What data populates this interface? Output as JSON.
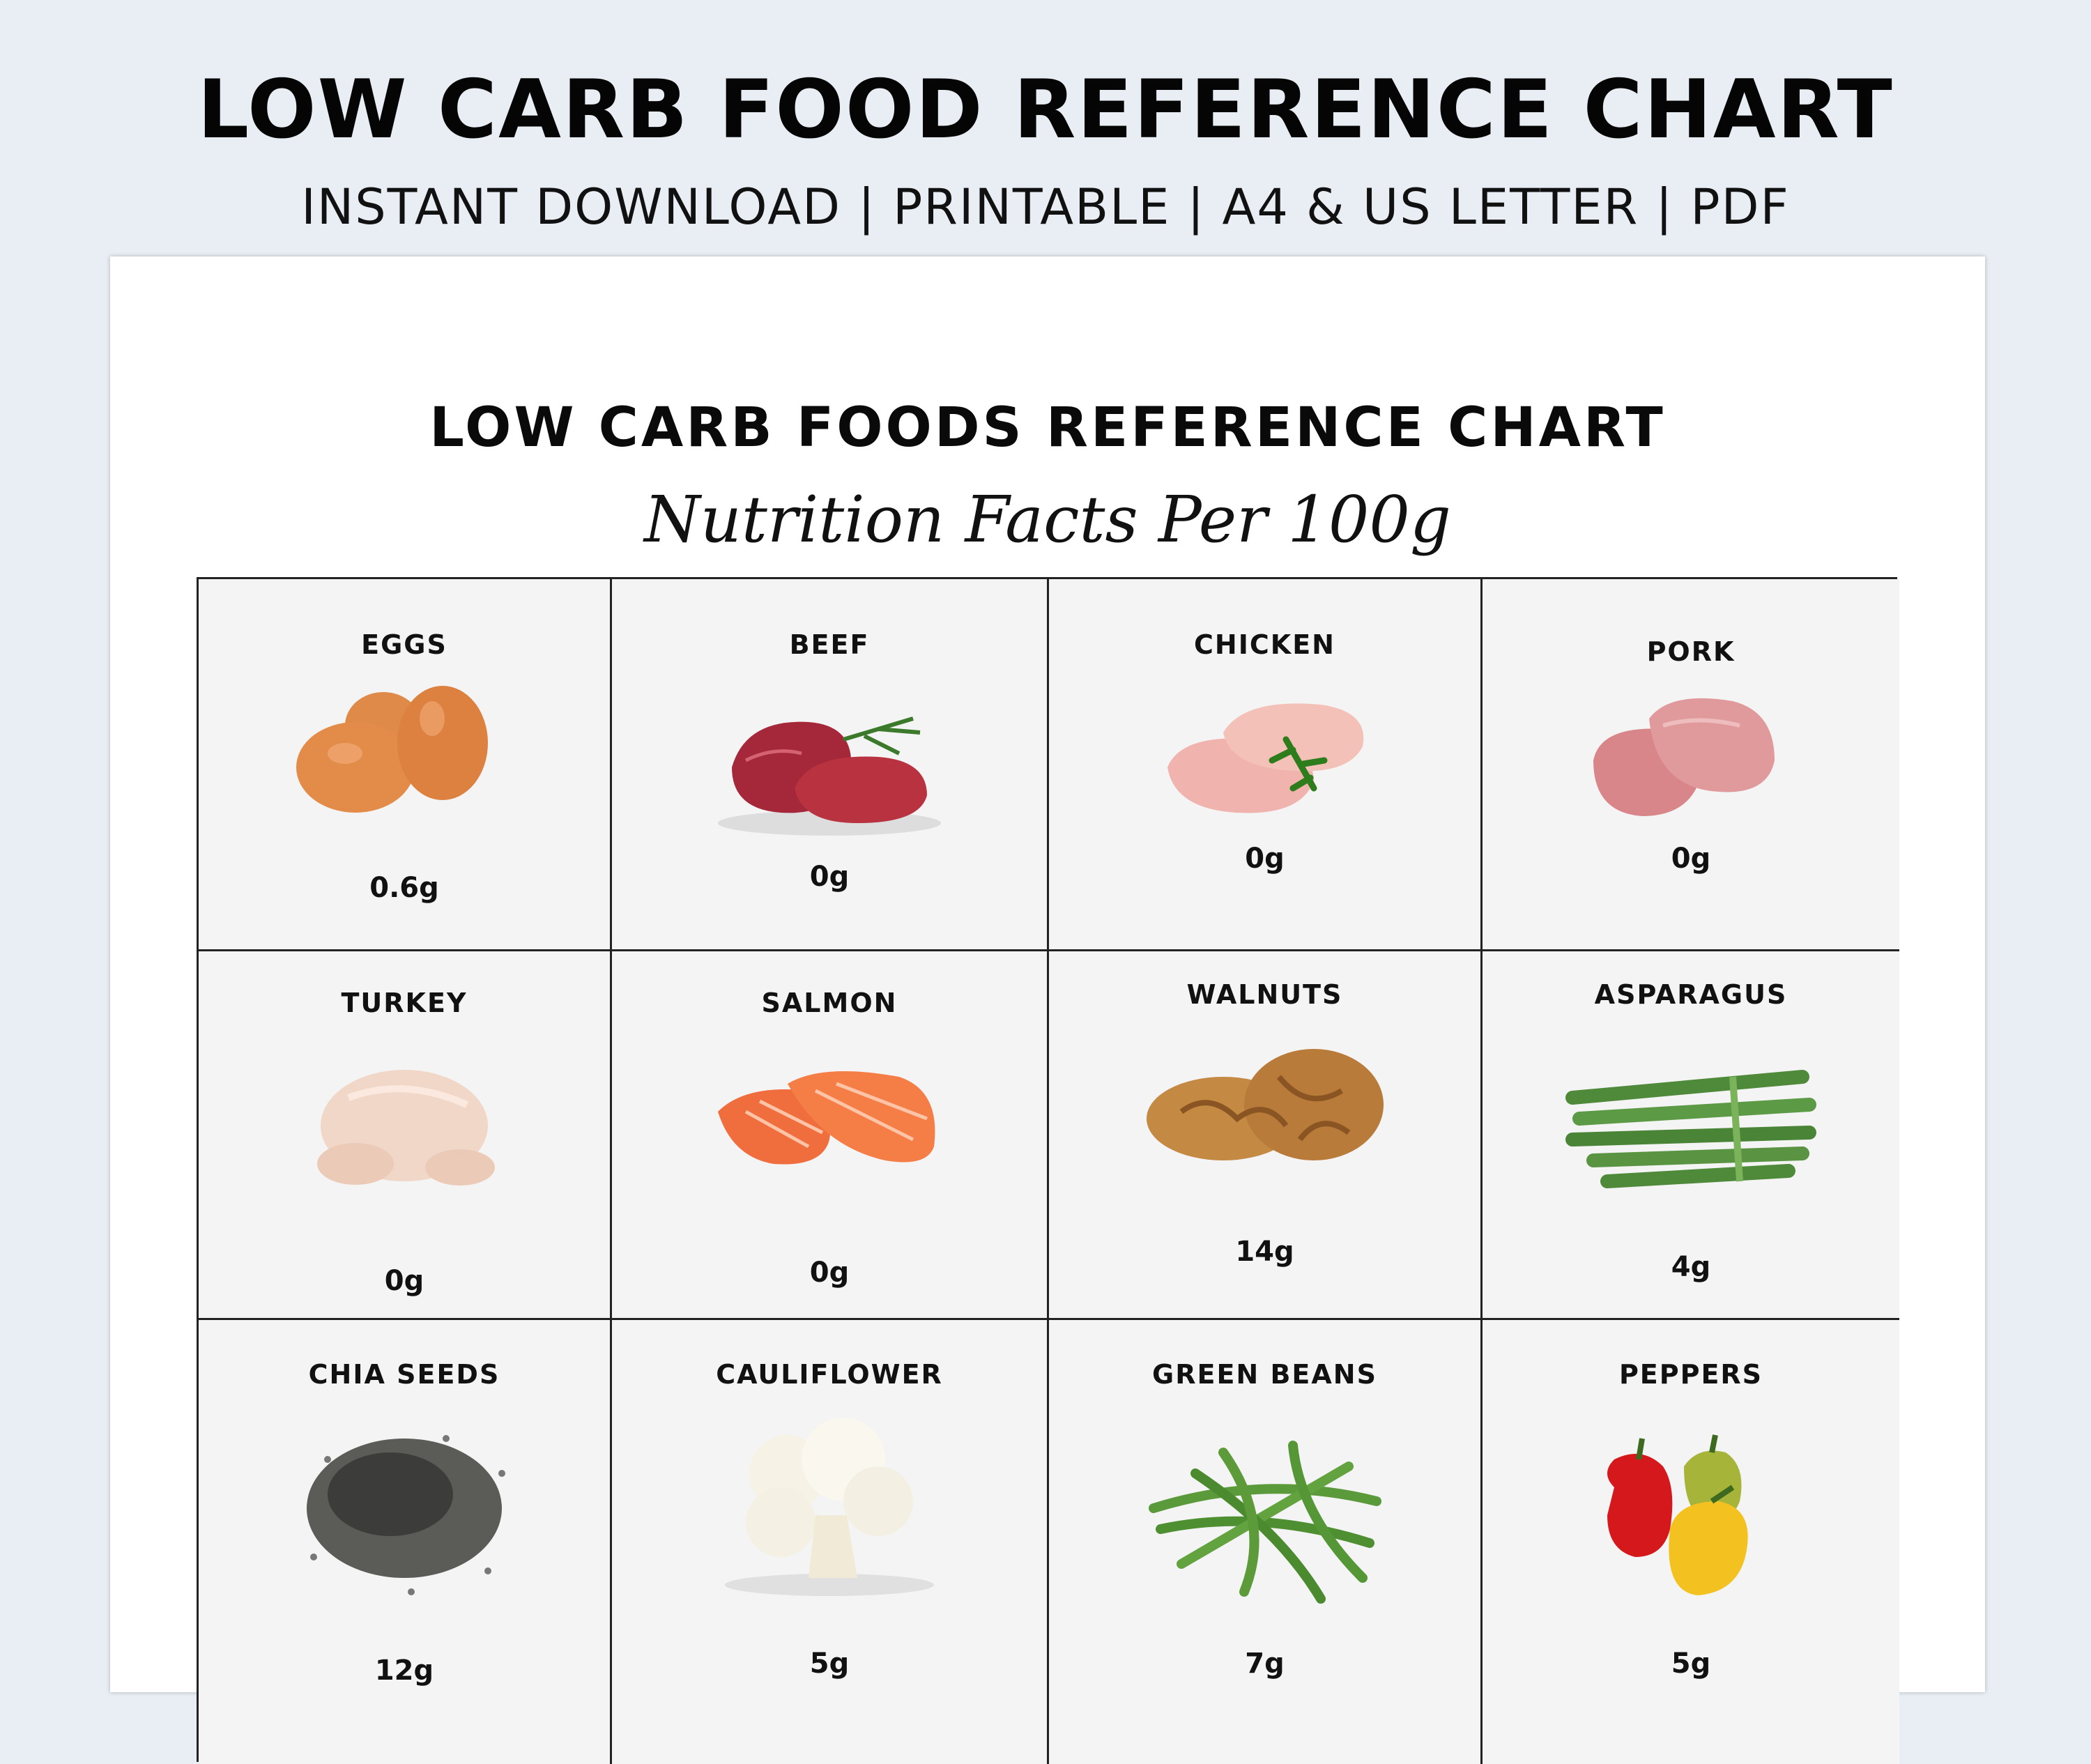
{
  "banner": {
    "title": "LOW CARB FOOD REFERENCE CHART",
    "subtitle": "INSTANT DOWNLOAD | PRINTABLE | A4 & US LETTER | PDF"
  },
  "document": {
    "title": "LOW CARB FOODS REFERENCE CHART",
    "subtitle": "Nutrition Facts Per 100g"
  },
  "foods": [
    {
      "name": "EGGS",
      "value": "0.6g",
      "icon": "eggs-icon"
    },
    {
      "name": "BEEF",
      "value": "0g",
      "icon": "beef-icon"
    },
    {
      "name": "CHICKEN",
      "value": "0g",
      "icon": "chicken-icon"
    },
    {
      "name": "PORK",
      "value": "0g",
      "icon": "pork-icon"
    },
    {
      "name": "TURKEY",
      "value": "0g",
      "icon": "turkey-icon"
    },
    {
      "name": "SALMON",
      "value": "0g",
      "icon": "salmon-icon"
    },
    {
      "name": "WALNUTS",
      "value": "14g",
      "icon": "walnuts-icon"
    },
    {
      "name": "ASPARAGUS",
      "value": "4g",
      "icon": "asparagus-icon"
    },
    {
      "name": "CHIA SEEDS",
      "value": "12g",
      "icon": "chia-seeds-icon"
    },
    {
      "name": "CAULIFLOWER",
      "value": "5g",
      "icon": "cauliflower-icon"
    },
    {
      "name": "GREEN BEANS",
      "value": "7g",
      "icon": "green-beans-icon"
    },
    {
      "name": "PEPPERS",
      "value": "5g",
      "icon": "peppers-icon"
    }
  ]
}
